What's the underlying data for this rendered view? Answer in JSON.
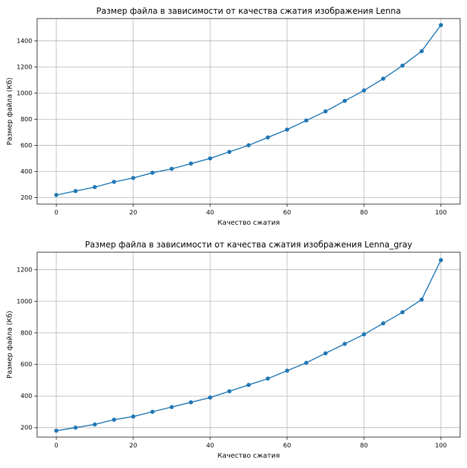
{
  "colors": {
    "line": "#1f77b4",
    "grid": "#b0b0b0",
    "axes": "#000000",
    "background": "#ffffff"
  },
  "chart_data": [
    {
      "type": "line",
      "title": "Размер файла в зависимости от качества сжатия изображения Lenna",
      "xlabel": "Качество сжатия",
      "ylabel": "Размер файла (Кб)",
      "xlim": [
        -5,
        105
      ],
      "ylim": [
        150,
        1570
      ],
      "xticks": [
        0,
        20,
        40,
        60,
        80,
        100
      ],
      "yticks": [
        200,
        400,
        600,
        800,
        1000,
        1200,
        1400
      ],
      "grid": true,
      "marker": "circle",
      "x": [
        0,
        5,
        10,
        15,
        20,
        25,
        30,
        35,
        40,
        45,
        50,
        55,
        60,
        65,
        70,
        75,
        80,
        85,
        90,
        95,
        100
      ],
      "y": [
        220,
        250,
        280,
        320,
        350,
        390,
        420,
        460,
        500,
        550,
        600,
        660,
        720,
        790,
        860,
        940,
        1020,
        1110,
        1210,
        1320,
        1520
      ]
    },
    {
      "type": "line",
      "title": "Размер файла в зависимости от качества сжатия изображения Lenna_gray",
      "xlabel": "Качество сжатия",
      "ylabel": "Размер файла (Кб)",
      "xlim": [
        -5,
        105
      ],
      "ylim": [
        140,
        1310
      ],
      "xticks": [
        0,
        20,
        40,
        60,
        80,
        100
      ],
      "yticks": [
        200,
        400,
        600,
        800,
        1000,
        1200
      ],
      "grid": true,
      "marker": "circle",
      "x": [
        0,
        5,
        10,
        15,
        20,
        25,
        30,
        35,
        40,
        45,
        50,
        55,
        60,
        65,
        70,
        75,
        80,
        85,
        90,
        95,
        100
      ],
      "y": [
        180,
        200,
        220,
        250,
        270,
        300,
        330,
        360,
        390,
        430,
        470,
        510,
        560,
        610,
        670,
        730,
        790,
        860,
        930,
        1010,
        1260
      ]
    }
  ]
}
